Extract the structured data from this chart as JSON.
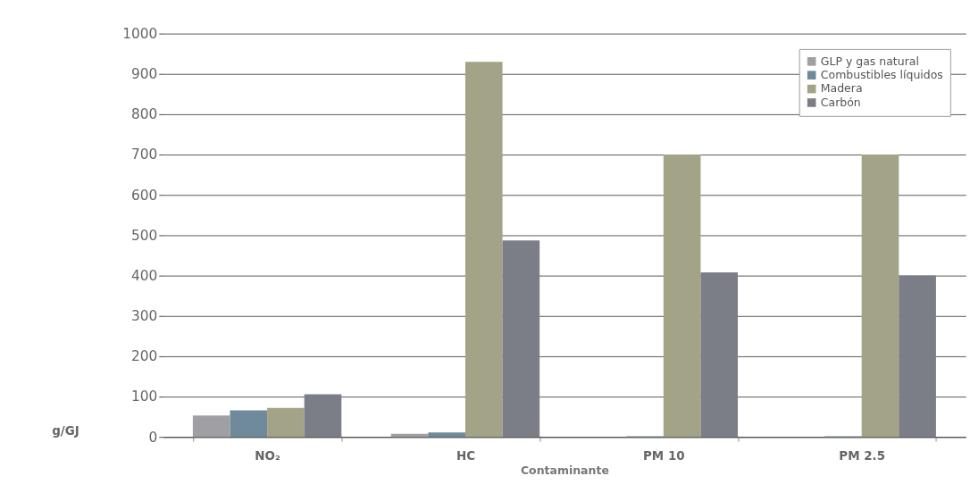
{
  "chart_data": {
    "type": "bar",
    "xlabel": "Contaminante",
    "ylabel": "g/GJ",
    "categories": [
      "NO₂",
      "HC",
      "PM 10",
      "PM 2.5"
    ],
    "series": [
      {
        "name": "GLP y gas natural",
        "color": "#a0a0a4",
        "values": [
          53,
          8,
          0,
          0
        ]
      },
      {
        "name": "Combustibles líquidos",
        "color": "#6f8a9a",
        "values": [
          66,
          11,
          2,
          2
        ]
      },
      {
        "name": "Madera",
        "color": "#a3a387",
        "values": [
          72,
          930,
          700,
          700
        ]
      },
      {
        "name": "Carbón",
        "color": "#7b7e86",
        "values": [
          106,
          487,
          408,
          400
        ]
      }
    ],
    "ylim": [
      0,
      1000
    ],
    "yticks": [
      0,
      100,
      200,
      300,
      400,
      500,
      600,
      700,
      800,
      900,
      1000
    ],
    "grid": "y",
    "legend": "top right"
  }
}
